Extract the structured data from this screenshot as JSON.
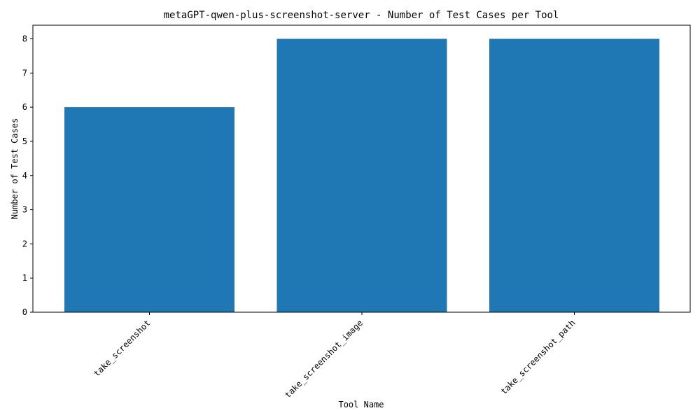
{
  "colors": {
    "bar": "#1f77b4",
    "axis": "#000000",
    "background": "#ffffff"
  },
  "chart_data": {
    "type": "bar",
    "title": "metaGPT-qwen-plus-screenshot-server - Number of Test Cases per Tool",
    "xlabel": "Tool Name",
    "ylabel": "Number of Test Cases",
    "categories": [
      "take_screenshot",
      "take_screenshot_image",
      "take_screenshot_path"
    ],
    "values": [
      6,
      8,
      8
    ],
    "ylim": [
      0,
      8.4
    ],
    "yticks": [
      0,
      1,
      2,
      3,
      4,
      5,
      6,
      7,
      8
    ],
    "grid": false,
    "legend": "none"
  }
}
